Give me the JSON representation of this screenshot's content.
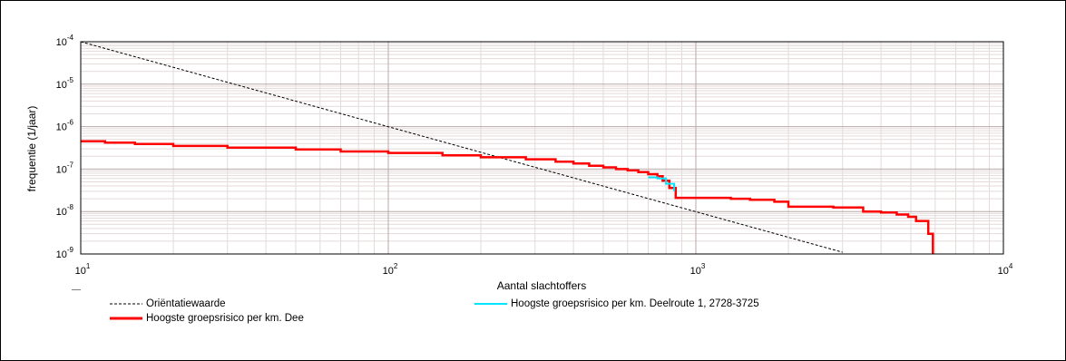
{
  "chart_data": {
    "type": "line",
    "title": "",
    "xlabel": "Aantal slachtoffers",
    "ylabel": "frequentie (1/jaar)",
    "x_scale": "log",
    "y_scale": "log",
    "xlim": [
      10,
      10000
    ],
    "ylim": [
      1e-09,
      0.0001
    ],
    "grid": true,
    "legend_position": "bottom",
    "x_ticks": [
      {
        "value": 10,
        "base": "10",
        "exp": "1"
      },
      {
        "value": 100,
        "base": "10",
        "exp": "2"
      },
      {
        "value": 1000,
        "base": "10",
        "exp": "3"
      },
      {
        "value": 10000,
        "base": "10",
        "exp": "4"
      }
    ],
    "y_ticks": [
      {
        "value": 0.0001,
        "base": "10",
        "exp": "-4"
      },
      {
        "value": 1e-05,
        "base": "10",
        "exp": "-5"
      },
      {
        "value": 1e-06,
        "base": "10",
        "exp": "-6"
      },
      {
        "value": 1e-07,
        "base": "10",
        "exp": "-7"
      },
      {
        "value": 1e-08,
        "base": "10",
        "exp": "-8"
      },
      {
        "value": 1e-09,
        "base": "10",
        "exp": "-9"
      }
    ],
    "series": [
      {
        "name": "Oriëntatiewaarde",
        "color": "#000000",
        "style": "dashed",
        "points": [
          [
            10,
            0.0001
          ],
          [
            3000,
            1.1e-09
          ]
        ]
      },
      {
        "name": "Hoogste groepsrisico per km. Deelroute 1, 2728-3725",
        "color": "#00e5ff",
        "style": "step",
        "points": [
          [
            700,
            6.4e-08
          ],
          [
            750,
            6e-08
          ],
          [
            800,
            4.5e-08
          ],
          [
            850,
            3e-08
          ]
        ]
      },
      {
        "name": "Hoogste groepsrisico per km. Dee",
        "color": "#ff0000",
        "style": "step",
        "points": [
          [
            10,
            4.5e-07
          ],
          [
            12,
            4.2e-07
          ],
          [
            15,
            3.9e-07
          ],
          [
            20,
            3.5e-07
          ],
          [
            30,
            3.2e-07
          ],
          [
            50,
            2.9e-07
          ],
          [
            70,
            2.6e-07
          ],
          [
            100,
            2.4e-07
          ],
          [
            150,
            2.1e-07
          ],
          [
            200,
            1.9e-07
          ],
          [
            280,
            1.7e-07
          ],
          [
            350,
            1.5e-07
          ],
          [
            400,
            1.35e-07
          ],
          [
            450,
            1.2e-07
          ],
          [
            500,
            1.1e-07
          ],
          [
            550,
            1e-07
          ],
          [
            600,
            9.3e-08
          ],
          [
            650,
            8.5e-08
          ],
          [
            700,
            7.6e-08
          ],
          [
            750,
            6.8e-08
          ],
          [
            780,
            5.3e-08
          ],
          [
            820,
            3.6e-08
          ],
          [
            860,
            2.1e-08
          ],
          [
            1050,
            2.1e-08
          ],
          [
            1300,
            2e-08
          ],
          [
            1500,
            1.9e-08
          ],
          [
            1800,
            1.7e-08
          ],
          [
            2000,
            1.3e-08
          ],
          [
            2800,
            1.25e-08
          ],
          [
            3500,
            1e-08
          ],
          [
            4000,
            9.5e-09
          ],
          [
            4500,
            8.5e-09
          ],
          [
            4900,
            7.5e-09
          ],
          [
            5200,
            6e-09
          ],
          [
            5700,
            3e-09
          ],
          [
            5900,
            1e-09
          ]
        ]
      }
    ]
  }
}
